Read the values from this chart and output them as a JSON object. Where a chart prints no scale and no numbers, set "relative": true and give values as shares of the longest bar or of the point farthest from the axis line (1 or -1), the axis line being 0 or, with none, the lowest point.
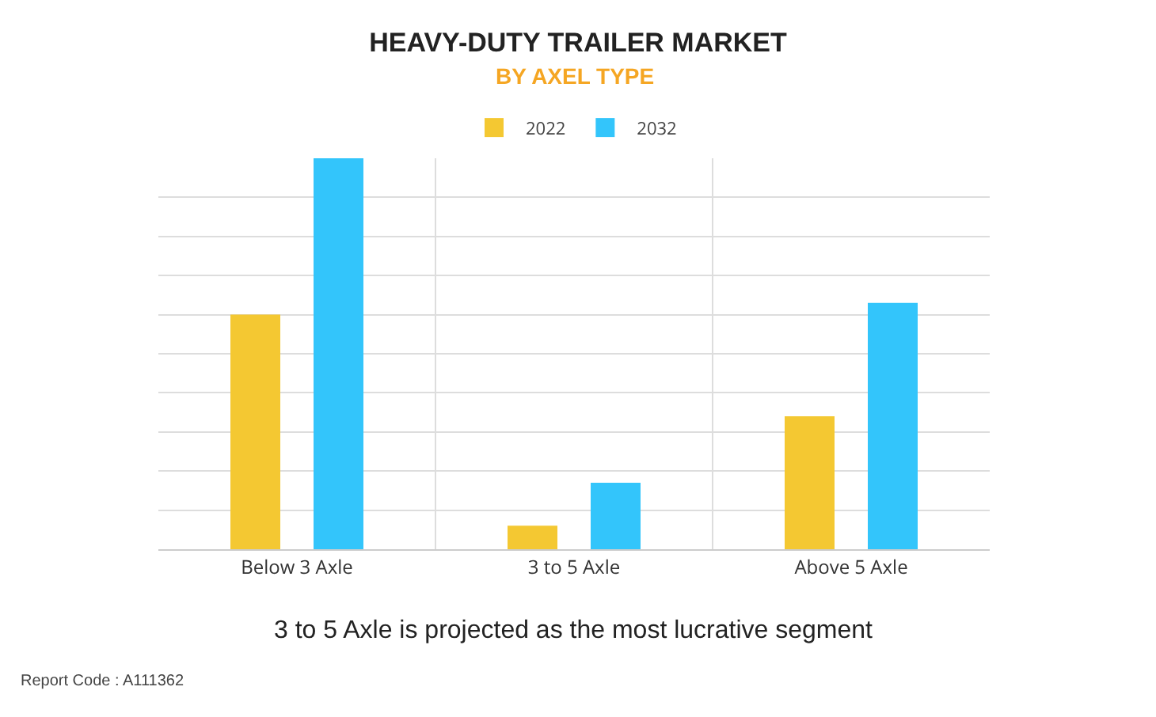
{
  "chart_data": {
    "type": "bar",
    "title": "HEAVY-DUTY TRAILER MARKET",
    "subtitle": "BY AXEL TYPE",
    "categories": [
      "Below 3 Axle",
      "3 to 5 Axle",
      "Above 5 Axle"
    ],
    "series": [
      {
        "name": "2022",
        "color": "#f4c832",
        "values": [
          0.6,
          0.06,
          0.34
        ]
      },
      {
        "name": "2032",
        "color": "#33c5fb",
        "values": [
          1,
          0.17,
          0.63
        ]
      }
    ],
    "relative": true,
    "grid": true,
    "legend": "top",
    "annotations": [
      "3 to 5 Axle is projected as the most lucrative segment",
      "Report Code : A111362"
    ]
  }
}
